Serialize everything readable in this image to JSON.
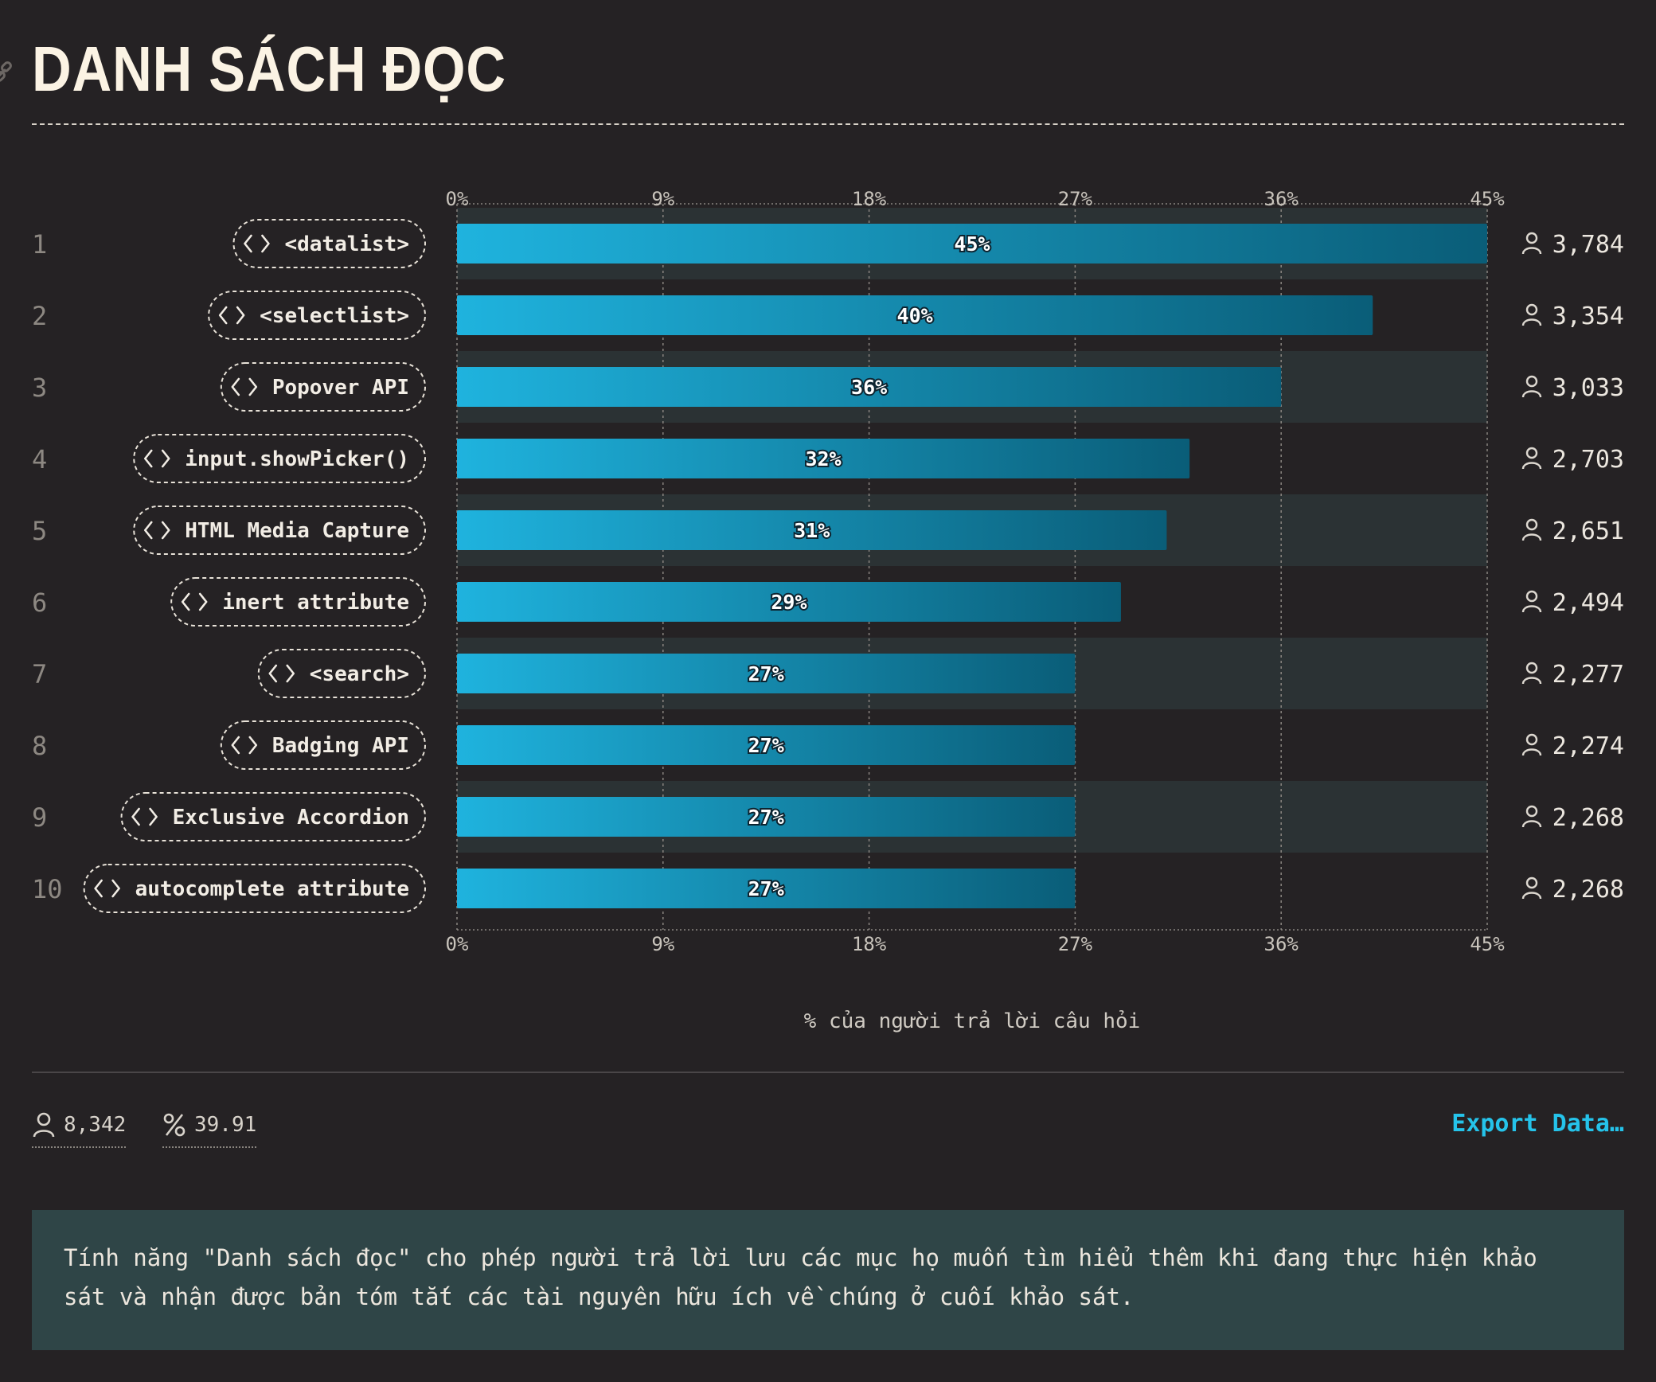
{
  "header": {
    "title": "DANH SÁCH ĐỌC",
    "link_icon": "link-icon"
  },
  "chart_data": {
    "type": "bar",
    "orientation": "horizontal",
    "ranks": [
      "1",
      "2",
      "3",
      "4",
      "5",
      "6",
      "7",
      "8",
      "9",
      "10"
    ],
    "categories": [
      "<datalist>",
      "<selectlist>",
      "Popover API",
      "input.showPicker()",
      "HTML Media Capture",
      "inert attribute",
      "<search>",
      "Badging API",
      "Exclusive Accordion",
      "autocomplete attribute"
    ],
    "values": [
      45,
      40,
      36,
      32,
      31,
      29,
      27,
      27,
      27,
      27
    ],
    "value_labels": [
      "45%",
      "40%",
      "36%",
      "32%",
      "31%",
      "29%",
      "27%",
      "27%",
      "27%",
      "27%"
    ],
    "counts": [
      "3,784",
      "3,354",
      "3,033",
      "2,703",
      "2,651",
      "2,494",
      "2,277",
      "2,274",
      "2,268",
      "2,268"
    ],
    "xlim": [
      0,
      45
    ],
    "ticks": [
      "0%",
      "9%",
      "18%",
      "27%",
      "36%",
      "45%"
    ],
    "tick_values": [
      0,
      9,
      18,
      27,
      36,
      45
    ],
    "xlabel": "% của người trả lời câu hỏi",
    "grid": true,
    "colors": {
      "bar_start": "#1fb3de",
      "bar_end": "#0a5d78",
      "band": "#2b3234",
      "background": "#252224"
    },
    "category_icon": "code-brackets-icon",
    "count_icon": "user-icon"
  },
  "footer": {
    "respondents": "8,342",
    "percent": "39.91",
    "respondents_icon": "user-icon",
    "percent_icon": "percent-icon",
    "export_label": "Export Data…",
    "accent_color": "#25c3ea"
  },
  "note": {
    "text": "Tính năng \"Danh sách đọc\" cho phép người trả lời lưu các mục họ muốn tìm hiểu thêm khi đang thực hiện khảo sát và nhận được bản tóm tắt các tài nguyên hữu ích về chúng ở cuối khảo sát."
  }
}
